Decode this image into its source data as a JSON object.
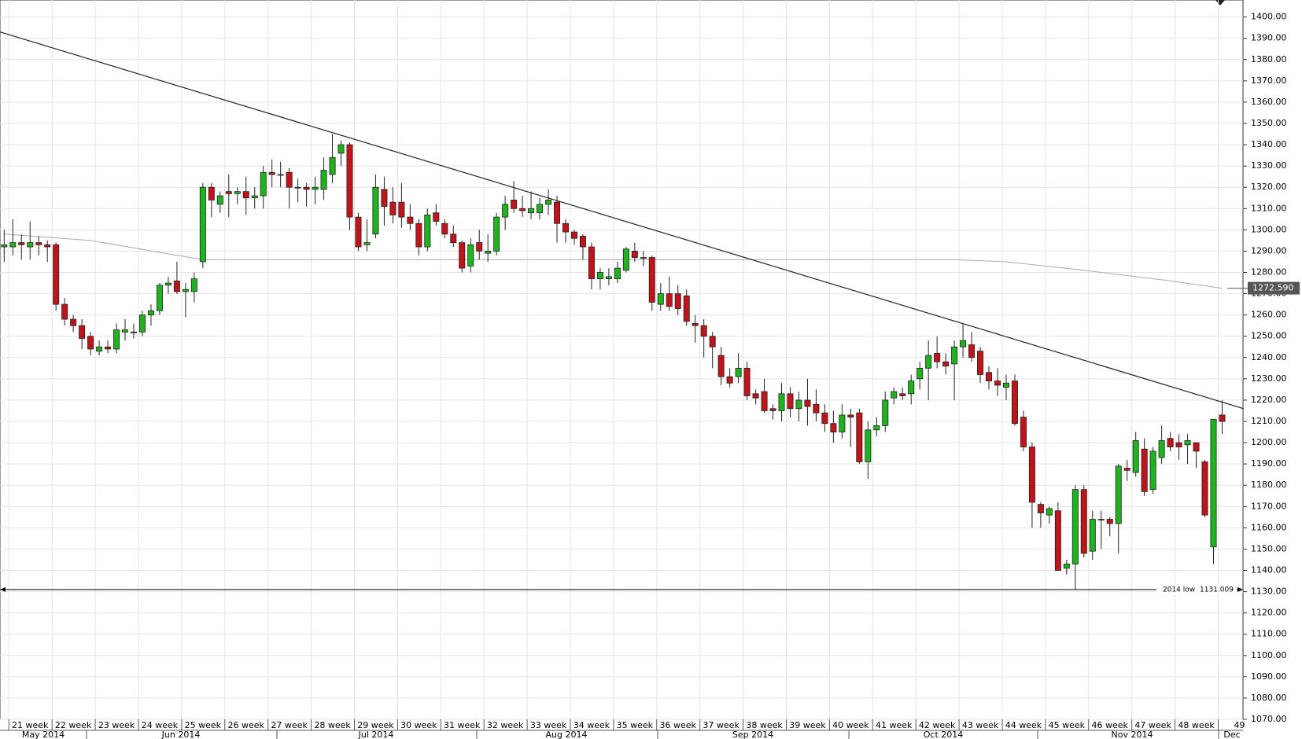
{
  "chart_data": {
    "type": "candlestick",
    "ylim": [
      1070,
      1408
    ],
    "yticks": [
      {
        "value": 1070,
        "label": "1070.00"
      },
      {
        "value": 1080,
        "label": "1080.00"
      },
      {
        "value": 1090,
        "label": "1090.00"
      },
      {
        "value": 1100,
        "label": "1100.00"
      },
      {
        "value": 1110,
        "label": "1110.00"
      },
      {
        "value": 1120,
        "label": "1120.00"
      },
      {
        "value": 1130,
        "label": "1130.00"
      },
      {
        "value": 1140,
        "label": "1140.00"
      },
      {
        "value": 1150,
        "label": "1150.00"
      },
      {
        "value": 1160,
        "label": "1160.00"
      },
      {
        "value": 1170,
        "label": "1170.00"
      },
      {
        "value": 1180,
        "label": "1180.00"
      },
      {
        "value": 1190,
        "label": "1190.00"
      },
      {
        "value": 1200,
        "label": "1200.00"
      },
      {
        "value": 1210,
        "label": "1210.00"
      },
      {
        "value": 1220,
        "label": "1220.00"
      },
      {
        "value": 1230,
        "label": "1230.00"
      },
      {
        "value": 1240,
        "label": "1240.00"
      },
      {
        "value": 1250,
        "label": "1250.00"
      },
      {
        "value": 1260,
        "label": "1260.00"
      },
      {
        "value": 1270,
        "label": "1270.00"
      },
      {
        "value": 1280,
        "label": "1280.00"
      },
      {
        "value": 1290,
        "label": "1290.00"
      },
      {
        "value": 1300,
        "label": "1300.00"
      },
      {
        "value": 1310,
        "label": "1310.00"
      },
      {
        "value": 1320,
        "label": "1320.00"
      },
      {
        "value": 1330,
        "label": "1330.00"
      },
      {
        "value": 1340,
        "label": "1340.00"
      },
      {
        "value": 1350,
        "label": "1350.00"
      },
      {
        "value": 1360,
        "label": "1360.00"
      },
      {
        "value": 1370,
        "label": "1370.00"
      },
      {
        "value": 1380,
        "label": "1380.00"
      },
      {
        "value": 1390,
        "label": "1390.00"
      },
      {
        "value": 1400,
        "label": "1400.00"
      }
    ],
    "grid": true,
    "up_color": "#1fb41f",
    "down_color": "#c0141a",
    "weeks": [
      "21 week",
      "22 week",
      "23 week",
      "24 week",
      "25 week",
      "26 week",
      "27 week",
      "28 week",
      "29 week",
      "30 week",
      "31 week",
      "32 week",
      "33 week",
      "34 week",
      "35 week",
      "36 week",
      "37 week",
      "38 week",
      "39 week",
      "40 week",
      "41 week",
      "42 week",
      "43 week",
      "44 week",
      "45 week",
      "46 week",
      "47 week",
      "48 week",
      "49"
    ],
    "months": [
      "May 2014",
      "Jun 2014",
      "Jul 2014",
      "Aug 2014",
      "Sep 2014",
      "Oct 2014",
      "Nov 2014",
      "Dec"
    ],
    "candles": {
      "open": [
        1292,
        1292,
        1294,
        1292,
        1294,
        1293,
        1293,
        1265,
        1258,
        1255,
        1250,
        1243,
        1245,
        1244,
        1252,
        1252,
        1252,
        1260,
        1262,
        1274,
        1276,
        1271,
        1271,
        1285,
        1320,
        1312,
        1318,
        1317,
        1318,
        1315,
        1316,
        1327,
        1326,
        1327,
        1320,
        1320,
        1319,
        1319,
        1326,
        1336,
        1340,
        1306,
        1293,
        1298,
        1319,
        1313,
        1313,
        1306,
        1303,
        1292,
        1308,
        1303,
        1298,
        1294,
        1283,
        1294,
        1289,
        1290,
        1306,
        1314,
        1310,
        1308,
        1308,
        1312,
        1313,
        1303,
        1299,
        1297,
        1292,
        1277,
        1277,
        1277,
        1281,
        1290,
        1287,
        1287,
        1265,
        1270,
        1270,
        1269,
        1256,
        1255,
        1250,
        1241,
        1231,
        1231,
        1235,
        1223,
        1224,
        1216,
        1215,
        1223,
        1216,
        1220,
        1218,
        1214,
        1209,
        1205,
        1213,
        1214,
        1191,
        1206,
        1208,
        1221,
        1223,
        1223,
        1230,
        1235,
        1242,
        1238,
        1237,
        1245,
        1246,
        1243,
        1233,
        1229,
        1226,
        1229,
        1212,
        1198,
        1171,
        1166,
        1168,
        1141,
        1143,
        1178,
        1149,
        1164,
        1164,
        1162,
        1188,
        1186,
        1197,
        1178,
        1193,
        1202,
        1200,
        1199,
        1200,
        1191,
        1151,
        1213
      ],
      "high": [
        1300,
        1305,
        1298,
        1304,
        1297,
        1295,
        1294,
        1268,
        1260,
        1258,
        1252,
        1248,
        1248,
        1256,
        1258,
        1256,
        1262,
        1265,
        1275,
        1278,
        1285,
        1275,
        1280,
        1322,
        1322,
        1318,
        1326,
        1320,
        1325,
        1320,
        1330,
        1333,
        1332,
        1329,
        1324,
        1322,
        1325,
        1334,
        1345,
        1342,
        1341,
        1308,
        1305,
        1326,
        1325,
        1320,
        1322,
        1312,
        1305,
        1310,
        1312,
        1305,
        1302,
        1295,
        1296,
        1300,
        1298,
        1308,
        1316,
        1323,
        1316,
        1318,
        1315,
        1319,
        1316,
        1305,
        1300,
        1298,
        1294,
        1282,
        1282,
        1285,
        1292,
        1294,
        1290,
        1288,
        1275,
        1278,
        1274,
        1272,
        1260,
        1258,
        1252,
        1245,
        1235,
        1242,
        1238,
        1225,
        1230,
        1218,
        1228,
        1226,
        1224,
        1230,
        1225,
        1218,
        1215,
        1218,
        1216,
        1216,
        1210,
        1212,
        1224,
        1226,
        1226,
        1232,
        1238,
        1248,
        1250,
        1242,
        1248,
        1256,
        1252,
        1245,
        1236,
        1235,
        1232,
        1232,
        1215,
        1200,
        1172,
        1170,
        1172,
        1145,
        1180,
        1180,
        1168,
        1168,
        1165,
        1190,
        1192,
        1205,
        1202,
        1198,
        1208,
        1205,
        1204,
        1204,
        1200,
        1192,
        1205,
        1220
      ],
      "low": [
        1285,
        1288,
        1286,
        1286,
        1288,
        1285,
        1262,
        1255,
        1252,
        1244,
        1241,
        1241,
        1242,
        1242,
        1248,
        1249,
        1250,
        1255,
        1260,
        1270,
        1270,
        1259,
        1266,
        1282,
        1306,
        1308,
        1306,
        1312,
        1307,
        1310,
        1310,
        1320,
        1320,
        1310,
        1313,
        1311,
        1312,
        1314,
        1322,
        1330,
        1300,
        1290,
        1290,
        1296,
        1302,
        1303,
        1301,
        1300,
        1288,
        1290,
        1302,
        1296,
        1292,
        1280,
        1280,
        1286,
        1285,
        1288,
        1300,
        1308,
        1306,
        1305,
        1305,
        1307,
        1294,
        1294,
        1293,
        1286,
        1272,
        1272,
        1274,
        1275,
        1280,
        1285,
        1283,
        1262,
        1262,
        1262,
        1260,
        1255,
        1247,
        1240,
        1235,
        1227,
        1226,
        1228,
        1220,
        1218,
        1214,
        1211,
        1210,
        1212,
        1210,
        1208,
        1210,
        1205,
        1200,
        1202,
        1198,
        1190,
        1183,
        1203,
        1205,
        1218,
        1220,
        1218,
        1225,
        1220,
        1235,
        1232,
        1220,
        1240,
        1238,
        1228,
        1225,
        1222,
        1220,
        1208,
        1196,
        1160,
        1160,
        1162,
        1140,
        1138,
        1131,
        1146,
        1145,
        1150,
        1156,
        1148,
        1182,
        1184,
        1175,
        1176,
        1190,
        1196,
        1192,
        1190,
        1188,
        1165,
        1143,
        1204
      ],
      "close": [
        1293,
        1294,
        1293,
        1294,
        1293,
        1292,
        1265,
        1258,
        1255,
        1249,
        1244,
        1245,
        1244,
        1253,
        1253,
        1252,
        1260,
        1262,
        1274,
        1275,
        1271,
        1272,
        1277,
        1320,
        1314,
        1316,
        1317,
        1318,
        1315,
        1316,
        1327,
        1326,
        1326,
        1320,
        1320,
        1319,
        1320,
        1328,
        1334,
        1340,
        1306,
        1292,
        1294,
        1320,
        1311,
        1307,
        1306,
        1303,
        1292,
        1307,
        1304,
        1298,
        1294,
        1282,
        1293,
        1290,
        1290,
        1306,
        1312,
        1310,
        1309,
        1310,
        1312,
        1314,
        1303,
        1299,
        1296,
        1292,
        1277,
        1280,
        1278,
        1282,
        1291,
        1287,
        1287,
        1266,
        1270,
        1264,
        1263,
        1257,
        1255,
        1250,
        1245,
        1231,
        1228,
        1235,
        1222,
        1221,
        1215,
        1215,
        1223,
        1216,
        1220,
        1217,
        1214,
        1209,
        1205,
        1213,
        1212,
        1191,
        1206,
        1208,
        1220,
        1224,
        1222,
        1229,
        1235,
        1241,
        1238,
        1236,
        1245,
        1248,
        1240,
        1232,
        1229,
        1227,
        1228,
        1209,
        1198,
        1172,
        1167,
        1169,
        1140,
        1143,
        1178,
        1148,
        1164,
        1164,
        1162,
        1189,
        1187,
        1201,
        1177,
        1196,
        1201,
        1198,
        1198,
        1201,
        1196,
        1166,
        1211,
        1210
      ]
    },
    "moving_average": {
      "color": "#aaaaaa",
      "x": [
        0,
        10,
        23,
        60,
        85,
        110,
        116,
        125,
        135,
        141
      ],
      "values": [
        1298,
        1295,
        1286,
        1286,
        1286,
        1286,
        1285,
        1281,
        1276,
        1272.59
      ],
      "value_label": "1272.590"
    },
    "trendline": {
      "color": "#222222",
      "x": [
        -0.5,
        143.5
      ],
      "values": [
        1393,
        1216
      ]
    },
    "support": {
      "label": "2014 low",
      "value": 1131.009,
      "value_label": "1131.009"
    }
  }
}
